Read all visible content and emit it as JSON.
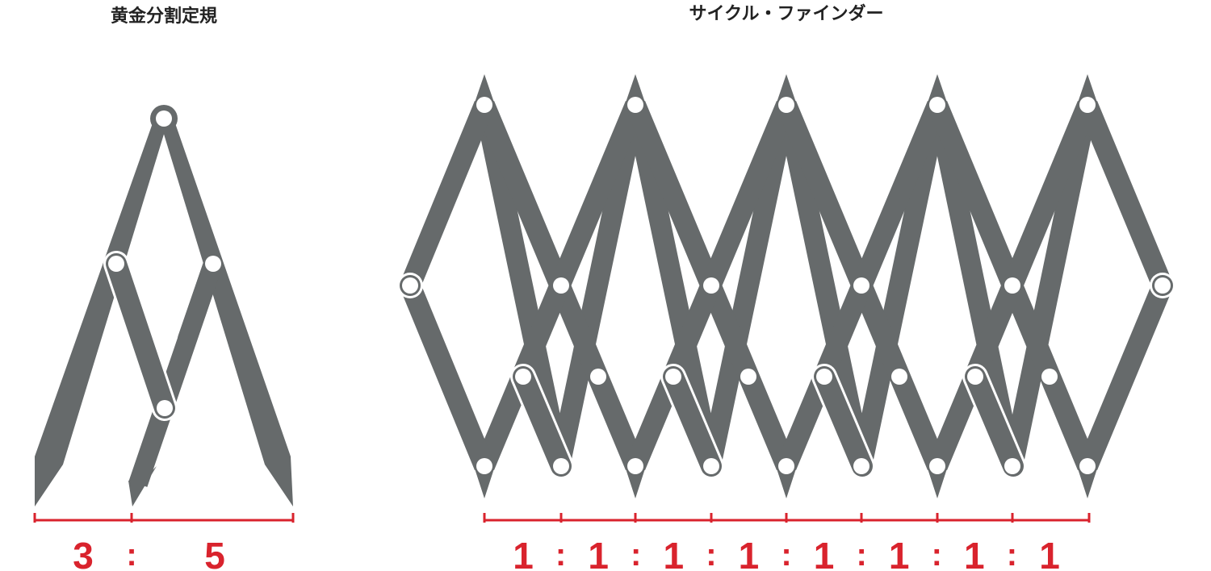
{
  "golden": {
    "title": "黄金分割定規",
    "ratio": {
      "left": "3",
      "separator": ":",
      "right": "5"
    }
  },
  "cycle": {
    "title": "サイクル・ファインダー",
    "ratio_values": [
      "1",
      "1",
      "1",
      "1",
      "1",
      "1",
      "1",
      "1"
    ],
    "separator": ":"
  },
  "colors": {
    "bar": "#666a6b",
    "pin": "#ffffff",
    "accent": "#d9232d",
    "title": "#222222"
  }
}
